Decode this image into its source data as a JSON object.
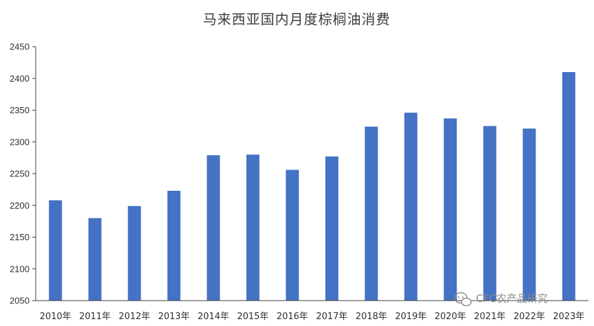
{
  "chart_data": {
    "type": "bar",
    "title": "马来西亚国内月度棕榈油消费",
    "xlabel": "",
    "ylabel": "",
    "categories": [
      "2010年",
      "2011年",
      "2012年",
      "2013年",
      "2014年",
      "2015年",
      "2016年",
      "2017年",
      "2018年",
      "2019年",
      "2020年",
      "2021年",
      "2022年",
      "2023年"
    ],
    "values": [
      2208,
      2180,
      2199,
      2223,
      2279,
      2280,
      2256,
      2277,
      2324,
      2346,
      2337,
      2325,
      2321,
      2410
    ],
    "ylim": [
      2050,
      2450
    ],
    "yticks": [
      2050,
      2100,
      2150,
      2200,
      2250,
      2300,
      2350,
      2400,
      2450
    ],
    "grid": false,
    "legend": "none",
    "bar_color": "#4472C4"
  },
  "watermark": {
    "text": "CFC农产品研究",
    "icon": "wechat-icon"
  }
}
